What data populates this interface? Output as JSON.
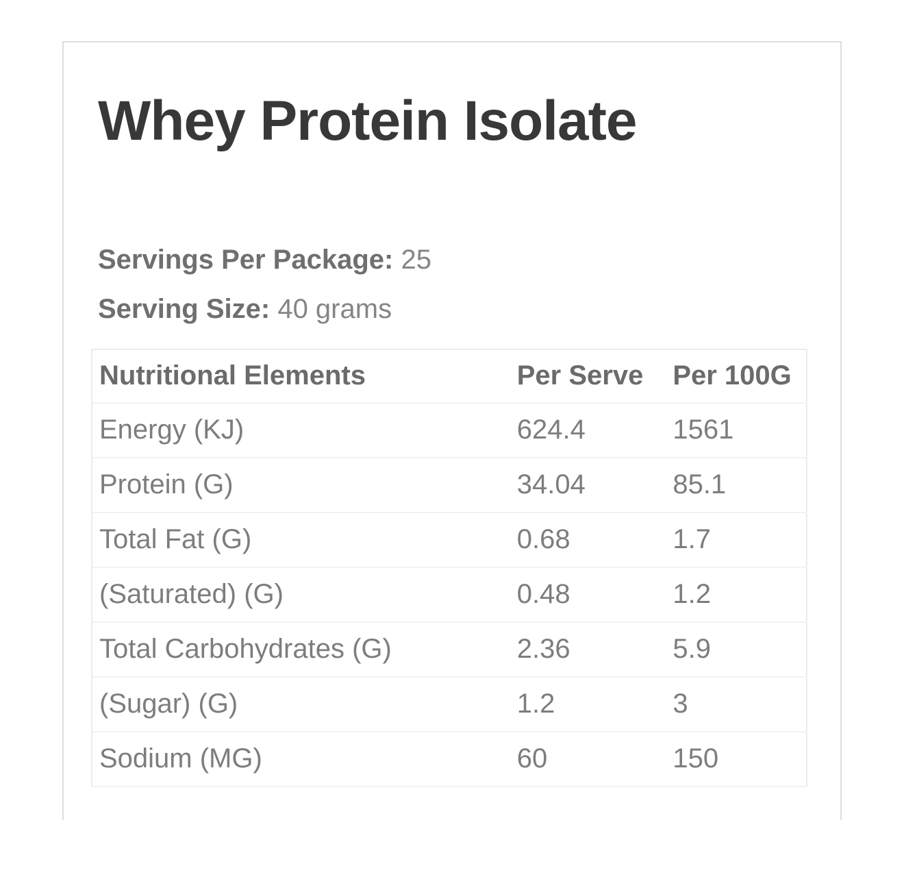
{
  "panel": {
    "title": "Whey Protein Isolate",
    "servings_label": "Servings Per Package:",
    "servings_value": "25",
    "serving_size_label": "Serving Size:",
    "serving_size_value": "40 grams"
  },
  "table": {
    "columns": [
      "Nutritional Elements",
      "Per Serve",
      "Per 100G"
    ],
    "rows": [
      {
        "element": "Energy (KJ)",
        "per_serve": "624.4",
        "per_100g": "1561"
      },
      {
        "element": "Protein (G)",
        "per_serve": "34.04",
        "per_100g": "85.1"
      },
      {
        "element": "Total Fat (G)",
        "per_serve": "0.68",
        "per_100g": "1.7"
      },
      {
        "element": "(Saturated) (G)",
        "per_serve": "0.48",
        "per_100g": "1.2"
      },
      {
        "element": "Total Carbohydrates (G)",
        "per_serve": "2.36",
        "per_100g": "5.9"
      },
      {
        "element": "(Sugar) (G)",
        "per_serve": "1.2",
        "per_100g": "3"
      },
      {
        "element": "Sodium (MG)",
        "per_serve": "60",
        "per_100g": "150"
      }
    ]
  },
  "colors": {
    "title": "#383838",
    "label_bold": "#6f6f6f",
    "value_text": "#858585",
    "table_header_text": "#6b6b6b",
    "table_body_text": "#7d7d7d",
    "card_border": "#dedede",
    "table_border": "#ececec",
    "row_border": "#f2f2f2",
    "background": "#ffffff"
  }
}
